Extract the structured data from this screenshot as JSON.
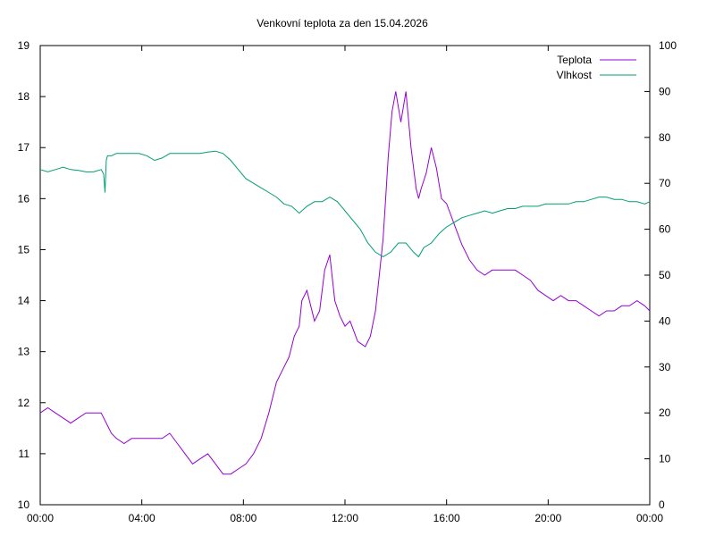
{
  "chart_data": {
    "type": "line",
    "title": "Venkovní teplota za den 15.04.2026",
    "xlabel": "",
    "ylabel": "",
    "y2label": "",
    "x_unit": "hours",
    "xlim": [
      0,
      24
    ],
    "ylim": [
      10,
      19
    ],
    "y2lim": [
      0,
      100
    ],
    "x_ticks": [
      "00:00",
      "04:00",
      "08:00",
      "12:00",
      "16:00",
      "20:00",
      "00:00"
    ],
    "y_ticks": [
      "10",
      "11",
      "12",
      "13",
      "14",
      "15",
      "16",
      "17",
      "18",
      "19"
    ],
    "y2_ticks": [
      "0",
      "10",
      "20",
      "30",
      "40",
      "50",
      "60",
      "70",
      "80",
      "90",
      "100"
    ],
    "grid": false,
    "legend_position": "top-right",
    "series": [
      {
        "name": "Teplota",
        "axis": "left",
        "color": "#9400d3",
        "x": [
          0,
          0.3,
          0.6,
          0.9,
          1.2,
          1.5,
          1.8,
          2.1,
          2.4,
          2.6,
          2.8,
          3.0,
          3.3,
          3.6,
          3.9,
          4.2,
          4.5,
          4.8,
          5.1,
          5.4,
          5.7,
          6.0,
          6.3,
          6.6,
          6.9,
          7.2,
          7.5,
          7.8,
          8.1,
          8.4,
          8.7,
          9.0,
          9.3,
          9.6,
          9.8,
          10.0,
          10.2,
          10.3,
          10.5,
          10.8,
          11.0,
          11.2,
          11.4,
          11.6,
          11.8,
          12.0,
          12.2,
          12.5,
          12.8,
          13.0,
          13.2,
          13.35,
          13.5,
          13.6,
          13.7,
          13.85,
          14.0,
          14.2,
          14.4,
          14.6,
          14.8,
          14.9,
          15.0,
          15.2,
          15.4,
          15.6,
          15.8,
          16.0,
          16.3,
          16.6,
          16.9,
          17.2,
          17.5,
          17.8,
          18.1,
          18.4,
          18.7,
          19.0,
          19.3,
          19.6,
          19.9,
          20.2,
          20.5,
          20.8,
          21.1,
          21.4,
          21.7,
          22.0,
          22.3,
          22.6,
          22.9,
          23.2,
          23.5,
          23.8,
          24.0
        ],
        "values": [
          11.8,
          11.9,
          11.8,
          11.7,
          11.6,
          11.7,
          11.8,
          11.8,
          11.8,
          11.6,
          11.4,
          11.3,
          11.2,
          11.3,
          11.3,
          11.3,
          11.3,
          11.3,
          11.4,
          11.2,
          11.0,
          10.8,
          10.9,
          11.0,
          10.8,
          10.6,
          10.6,
          10.7,
          10.8,
          11.0,
          11.3,
          11.8,
          12.4,
          12.7,
          12.9,
          13.3,
          13.5,
          14.0,
          14.2,
          13.6,
          13.8,
          14.6,
          14.9,
          14.0,
          13.7,
          13.5,
          13.6,
          13.2,
          13.1,
          13.3,
          13.8,
          14.5,
          15.2,
          16.0,
          16.8,
          17.7,
          18.1,
          17.5,
          18.1,
          17.0,
          16.2,
          16.0,
          16.2,
          16.5,
          17.0,
          16.6,
          16.0,
          15.9,
          15.5,
          15.1,
          14.8,
          14.6,
          14.5,
          14.6,
          14.6,
          14.6,
          14.6,
          14.5,
          14.4,
          14.2,
          14.1,
          14.0,
          14.1,
          14.0,
          14.0,
          13.9,
          13.8,
          13.7,
          13.8,
          13.8,
          13.9,
          13.9,
          14.0,
          13.9,
          13.8
        ]
      },
      {
        "name": "Vlhkost",
        "axis": "right",
        "color": "#009e73",
        "x": [
          0,
          0.3,
          0.6,
          0.9,
          1.2,
          1.5,
          1.8,
          2.1,
          2.4,
          2.5,
          2.55,
          2.6,
          2.65,
          2.8,
          3.0,
          3.3,
          3.6,
          3.9,
          4.2,
          4.5,
          4.8,
          5.1,
          5.4,
          5.7,
          6.0,
          6.3,
          6.6,
          6.9,
          7.2,
          7.5,
          7.8,
          8.1,
          8.4,
          8.7,
          9.0,
          9.3,
          9.6,
          9.9,
          10.2,
          10.5,
          10.8,
          11.1,
          11.4,
          11.7,
          12.0,
          12.3,
          12.6,
          12.9,
          13.2,
          13.5,
          13.8,
          14.1,
          14.4,
          14.7,
          14.9,
          15.1,
          15.4,
          15.7,
          16.0,
          16.3,
          16.6,
          16.9,
          17.2,
          17.5,
          17.8,
          18.1,
          18.4,
          18.7,
          19.0,
          19.3,
          19.6,
          19.9,
          20.2,
          20.5,
          20.8,
          21.1,
          21.4,
          21.7,
          22.0,
          22.3,
          22.6,
          22.9,
          23.2,
          23.5,
          23.8,
          24.0
        ],
        "values": [
          73,
          72.5,
          73,
          73.5,
          73,
          72.8,
          72.5,
          72.5,
          73,
          72,
          68,
          75,
          76,
          76,
          76.5,
          76.5,
          76.5,
          76.5,
          76,
          75,
          75.5,
          76.5,
          76.5,
          76.5,
          76.5,
          76.5,
          76.8,
          77,
          76.5,
          75,
          73,
          71,
          70,
          69,
          68,
          67,
          65.5,
          65,
          63.5,
          65,
          66,
          66,
          67,
          66,
          64,
          62,
          60,
          57,
          55,
          54,
          55,
          57,
          57,
          55,
          54,
          56,
          57,
          59,
          60.5,
          61.5,
          62.5,
          63,
          63.5,
          64,
          63.5,
          64,
          64.5,
          64.5,
          65,
          65,
          65,
          65.5,
          65.5,
          65.5,
          65.5,
          66,
          66,
          66.5,
          67,
          67,
          66.5,
          66.5,
          66,
          66,
          65.5,
          66
        ]
      }
    ]
  }
}
